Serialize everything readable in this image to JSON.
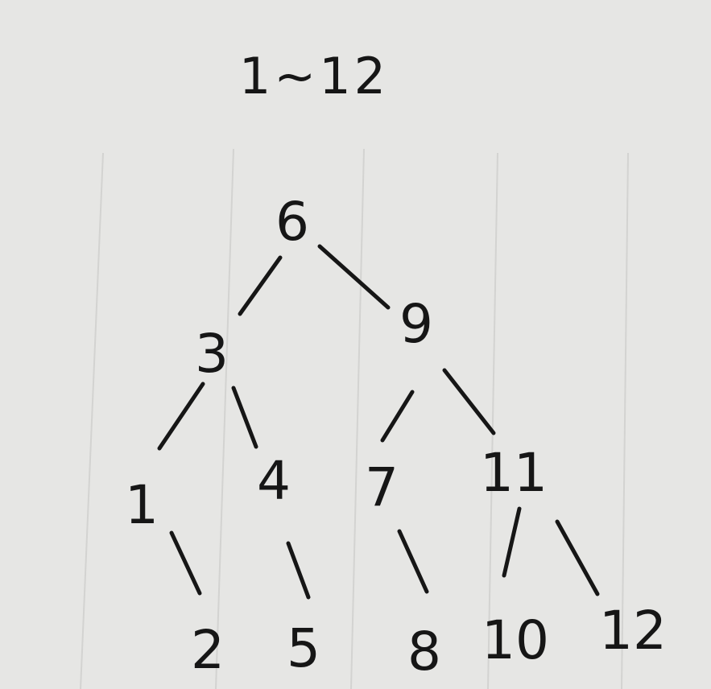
{
  "title": "1~12",
  "tree": {
    "nodes": [
      {
        "id": "6",
        "label": "6"
      },
      {
        "id": "3",
        "label": "3"
      },
      {
        "id": "9",
        "label": "9"
      },
      {
        "id": "1",
        "label": "1"
      },
      {
        "id": "4",
        "label": "4"
      },
      {
        "id": "7",
        "label": "7"
      },
      {
        "id": "11",
        "label": "11"
      },
      {
        "id": "2",
        "label": "2"
      },
      {
        "id": "5",
        "label": "5"
      },
      {
        "id": "8",
        "label": "8"
      },
      {
        "id": "10",
        "label": "10"
      },
      {
        "id": "12",
        "label": "12"
      }
    ],
    "edges": [
      {
        "from": "6",
        "to": "3"
      },
      {
        "from": "6",
        "to": "9"
      },
      {
        "from": "3",
        "to": "1"
      },
      {
        "from": "3",
        "to": "4"
      },
      {
        "from": "9",
        "to": "7"
      },
      {
        "from": "9",
        "to": "11"
      },
      {
        "from": "1",
        "to": "2"
      },
      {
        "from": "4",
        "to": "5"
      },
      {
        "from": "7",
        "to": "8"
      },
      {
        "from": "11",
        "to": "10"
      },
      {
        "from": "11",
        "to": "12"
      }
    ]
  },
  "colors": {
    "ink": "#161616",
    "paper": "#e6e6e4",
    "rule_line": "#d2d2d0"
  }
}
